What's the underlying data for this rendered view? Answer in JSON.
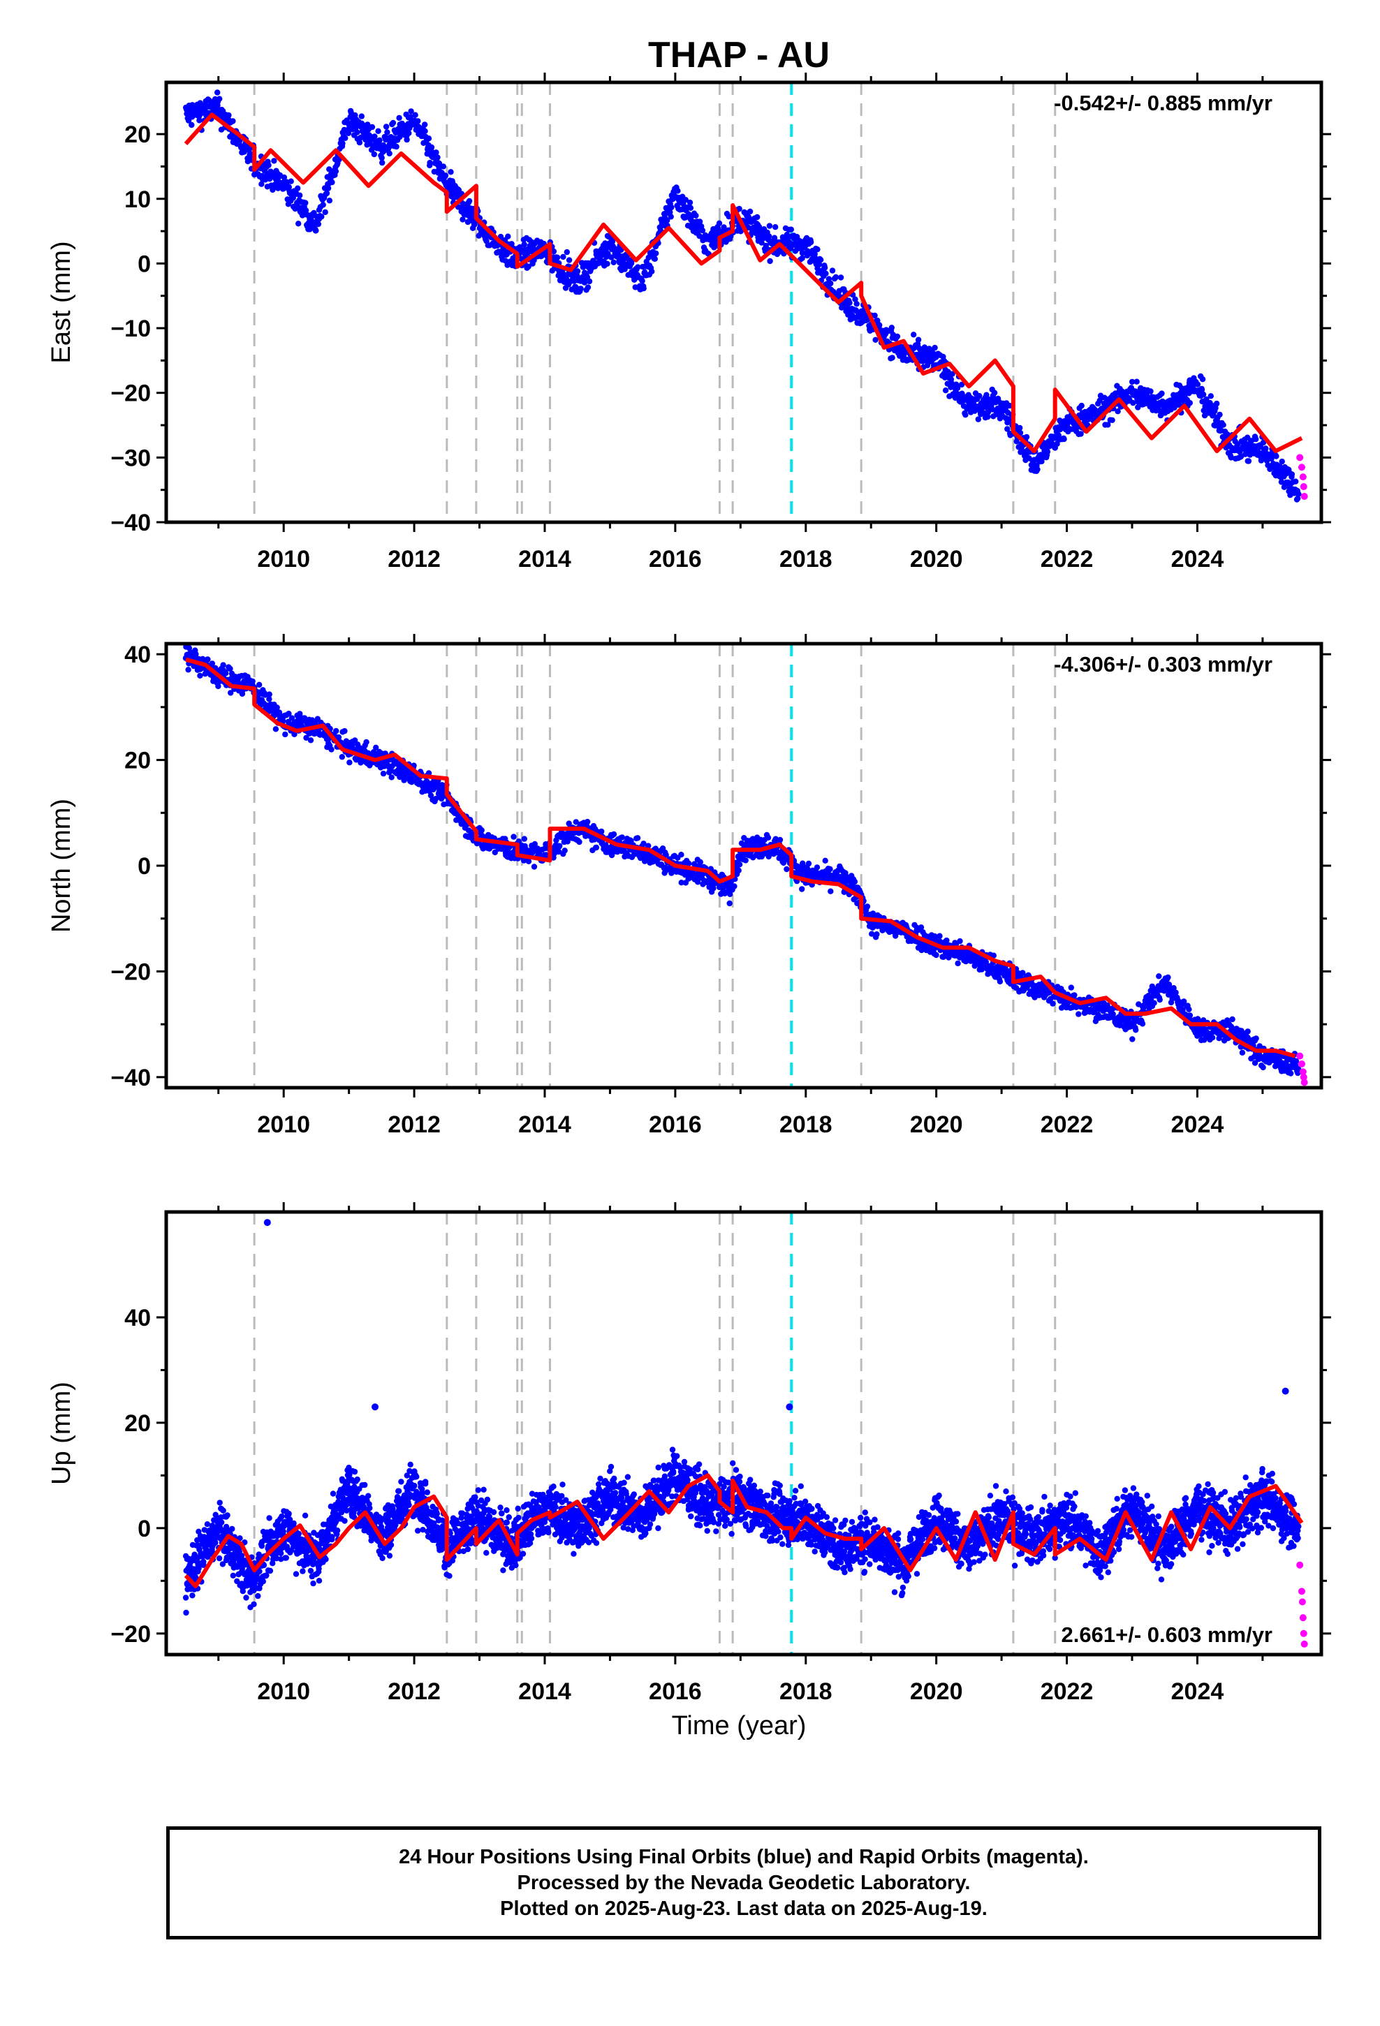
{
  "title": "THAP - AU",
  "xlabel": "Time (year)",
  "footer": [
    "24 Hour Positions Using Final Orbits (blue) and Rapid Orbits (magenta).",
    "Processed by the Nevada Geodetic Laboratory.",
    "Plotted on 2025-Aug-23. Last data on 2025-Aug-19."
  ],
  "colors": {
    "final_orbits": "#0000ff",
    "rapid_orbits": "#ff00ff",
    "model": "#ff0000",
    "events": "#bbbbbb",
    "antenna_change": "#00e5ee"
  },
  "chart_data": [
    {
      "type": "scatter",
      "component": "East",
      "ylabel": "East (mm)",
      "rate_label": "-0.542+/- 0.885 mm/yr",
      "xlim": [
        2008.2,
        2025.9
      ],
      "ylim": [
        -40,
        28
      ],
      "xticks": [
        2010,
        2012,
        2014,
        2016,
        2018,
        2020,
        2022,
        2024
      ],
      "yticks": [
        -40,
        -30,
        -20,
        -10,
        0,
        10,
        20
      ],
      "event_lines": [
        2009.55,
        2012.5,
        2012.95,
        2013.58,
        2013.65,
        2014.08,
        2016.68,
        2016.88,
        2018.85,
        2021.18,
        2021.82
      ],
      "antenna_change_line": 2017.78,
      "rapid_orbits": {
        "x": [
          2025.57,
          2025.6,
          2025.62,
          2025.63,
          2025.64
        ],
        "y": [
          -30,
          -31.5,
          -33,
          -34.5,
          -36
        ]
      },
      "final_orbits_envelope": {
        "x": [
          2008.5,
          2009.0,
          2009.5,
          2010.0,
          2010.5,
          2011.0,
          2011.5,
          2012.0,
          2012.5,
          2013.0,
          2013.5,
          2014.0,
          2014.5,
          2015.0,
          2015.5,
          2016.0,
          2016.5,
          2017.0,
          2017.5,
          2018.0,
          2018.5,
          2019.0,
          2019.5,
          2020.0,
          2020.5,
          2021.0,
          2021.5,
          2022.0,
          2022.5,
          2023.0,
          2023.5,
          2024.0,
          2024.5,
          2025.0,
          2025.55
        ],
        "y": [
          23,
          24,
          16,
          12,
          6,
          22,
          18,
          22,
          12,
          6,
          1,
          2,
          -3,
          3,
          -3,
          11,
          3,
          7,
          3,
          3,
          -5,
          -9,
          -14,
          -15,
          -22,
          -22,
          -31,
          -25,
          -23,
          -20,
          -22,
          -19,
          -28,
          -29,
          -35
        ]
      },
      "model": {
        "x": [
          2008.5,
          2008.9,
          2009.3,
          2009.55,
          2009.55,
          2009.8,
          2010.3,
          2010.8,
          2011.3,
          2011.8,
          2012.3,
          2012.5,
          2012.5,
          2012.95,
          2012.95,
          2013.3,
          2013.58,
          2013.58,
          2014.08,
          2014.08,
          2014.4,
          2014.9,
          2015.4,
          2015.9,
          2016.4,
          2016.68,
          2016.68,
          2016.88,
          2016.88,
          2017.3,
          2017.6,
          2018.0,
          2018.5,
          2018.85,
          2018.85,
          2019.2,
          2019.5,
          2019.8,
          2020.2,
          2020.5,
          2020.9,
          2021.18,
          2021.18,
          2021.5,
          2021.82,
          2021.82,
          2022.3,
          2022.8,
          2023.3,
          2023.8,
          2024.3,
          2024.8,
          2025.2,
          2025.6
        ],
        "y": [
          18.5,
          23,
          20,
          18,
          14.5,
          17.5,
          12.5,
          17.5,
          12,
          17,
          12.5,
          11,
          8,
          12,
          7,
          3.5,
          1.5,
          -0.5,
          3,
          0,
          -1,
          6,
          0.5,
          5.5,
          0,
          2,
          4,
          5,
          9,
          0.5,
          3,
          -1,
          -6,
          -3,
          -5,
          -13,
          -12,
          -17,
          -15.5,
          -19,
          -15,
          -19,
          -26,
          -29,
          -24,
          -19.5,
          -26,
          -21,
          -27,
          -22,
          -29,
          -24,
          -29,
          -27
        ]
      }
    },
    {
      "type": "scatter",
      "component": "North",
      "ylabel": "North (mm)",
      "rate_label": "-4.306+/- 0.303 mm/yr",
      "xlim": [
        2008.2,
        2025.9
      ],
      "ylim": [
        -42,
        42
      ],
      "xticks": [
        2010,
        2012,
        2014,
        2016,
        2018,
        2020,
        2022,
        2024
      ],
      "yticks": [
        -40,
        -20,
        0,
        20,
        40
      ],
      "event_lines": [
        2009.55,
        2012.5,
        2012.95,
        2013.58,
        2013.65,
        2014.08,
        2016.68,
        2016.88,
        2018.85,
        2021.18,
        2021.82
      ],
      "antenna_change_line": 2017.78,
      "rapid_orbits": {
        "x": [
          2025.57,
          2025.6,
          2025.62,
          2025.63,
          2025.64
        ],
        "y": [
          -36,
          -37.5,
          -39,
          -40,
          -41
        ]
      },
      "final_orbits_envelope": {
        "x": [
          2008.5,
          2009.0,
          2009.5,
          2010.0,
          2010.5,
          2011.0,
          2011.5,
          2012.0,
          2012.5,
          2013.0,
          2013.5,
          2014.0,
          2014.5,
          2015.0,
          2015.5,
          2016.0,
          2016.5,
          2016.85,
          2017.0,
          2017.5,
          2018.0,
          2018.5,
          2018.85,
          2019.0,
          2019.5,
          2020.0,
          2020.5,
          2021.0,
          2021.5,
          2022.0,
          2022.5,
          2023.0,
          2023.5,
          2024.0,
          2024.5,
          2025.0,
          2025.55
        ],
        "y": [
          40,
          36,
          34,
          27,
          26,
          22,
          20,
          17,
          13,
          5,
          3,
          2,
          7,
          4,
          3,
          0,
          -2,
          -5,
          3,
          4,
          -2,
          -2,
          -6,
          -11,
          -12,
          -15,
          -17,
          -20,
          -23,
          -25,
          -27,
          -30,
          -22,
          -31,
          -31,
          -36,
          -38
        ]
      },
      "model": {
        "x": [
          2008.5,
          2008.8,
          2009.2,
          2009.55,
          2009.55,
          2009.9,
          2010.2,
          2010.6,
          2010.9,
          2011.4,
          2011.7,
          2012.1,
          2012.5,
          2012.5,
          2012.95,
          2012.95,
          2013.58,
          2013.58,
          2014.08,
          2014.08,
          2014.6,
          2015.1,
          2015.6,
          2016.0,
          2016.5,
          2016.68,
          2016.68,
          2016.88,
          2016.88,
          2017.3,
          2017.6,
          2017.78,
          2017.78,
          2018.1,
          2018.5,
          2018.85,
          2018.85,
          2019.3,
          2019.7,
          2020.1,
          2020.5,
          2020.9,
          2021.18,
          2021.18,
          2021.6,
          2021.82,
          2021.82,
          2022.2,
          2022.6,
          2022.9,
          2023.2,
          2023.6,
          2023.9,
          2024.3,
          2024.6,
          2024.9,
          2025.2,
          2025.5
        ],
        "y": [
          39,
          38,
          34,
          33.5,
          30.5,
          27,
          25.5,
          26.5,
          22,
          20,
          21,
          17,
          16.5,
          13.5,
          6.5,
          5,
          4,
          2,
          1,
          7,
          7,
          4,
          3,
          0,
          -1,
          -3,
          -3,
          -2,
          3,
          3,
          4,
          2,
          -2,
          -3,
          -3.5,
          -6,
          -10,
          -10.5,
          -13.5,
          -15.5,
          -15.5,
          -18,
          -19,
          -22,
          -21,
          -24,
          -24,
          -26,
          -25,
          -28,
          -28,
          -27,
          -30,
          -30,
          -33,
          -35,
          -35,
          -36
        ]
      }
    },
    {
      "type": "scatter",
      "component": "Up",
      "ylabel": "Up (mm)",
      "rate_label": "2.661+/- 0.603 mm/yr",
      "xlim": [
        2008.2,
        2025.9
      ],
      "ylim": [
        -24,
        60
      ],
      "xticks": [
        2010,
        2012,
        2014,
        2016,
        2018,
        2020,
        2022,
        2024
      ],
      "yticks": [
        -20,
        0,
        20,
        40
      ],
      "event_lines": [
        2009.55,
        2012.5,
        2012.95,
        2013.58,
        2013.65,
        2014.08,
        2016.68,
        2016.88,
        2018.85,
        2021.18,
        2021.82
      ],
      "antenna_change_line": 2017.78,
      "rapid_orbits": {
        "x": [
          2025.57,
          2025.6,
          2025.61,
          2025.62,
          2025.63,
          2025.64
        ],
        "y": [
          -7,
          -12,
          -14,
          -17,
          -20,
          -22
        ]
      },
      "outliers": {
        "x": [
          2009.75,
          2017.75,
          2025.35,
          2011.4
        ],
        "y": [
          58,
          23,
          26,
          23
        ]
      },
      "final_orbits_envelope": {
        "x": [
          2008.5,
          2009.0,
          2009.5,
          2010.0,
          2010.5,
          2011.0,
          2011.5,
          2012.0,
          2012.5,
          2013.0,
          2013.5,
          2014.0,
          2014.5,
          2015.0,
          2015.5,
          2016.0,
          2016.5,
          2017.0,
          2017.5,
          2018.0,
          2018.5,
          2019.0,
          2019.5,
          2020.0,
          2020.5,
          2021.0,
          2021.5,
          2022.0,
          2022.5,
          2023.0,
          2023.5,
          2024.0,
          2024.5,
          2025.0,
          2025.55
        ],
        "y": [
          -10,
          0,
          -10,
          0,
          -6,
          8,
          -2,
          8,
          -4,
          2,
          -3,
          4,
          0,
          6,
          2,
          10,
          4,
          6,
          2,
          2,
          -4,
          -2,
          -7,
          2,
          -4,
          2,
          -2,
          2,
          -5,
          4,
          -4,
          4,
          0,
          6,
          0
        ]
      },
      "model": {
        "x": [
          2008.5,
          2008.65,
          2008.9,
          2009.15,
          2009.35,
          2009.55,
          2009.75,
          2010.0,
          2010.25,
          2010.55,
          2010.8,
          2011.0,
          2011.25,
          2011.55,
          2011.8,
          2012.0,
          2012.3,
          2012.5,
          2012.5,
          2012.65,
          2012.95,
          2012.95,
          2013.3,
          2013.58,
          2013.58,
          2013.8,
          2014.08,
          2014.08,
          2014.5,
          2014.9,
          2015.3,
          2015.6,
          2015.9,
          2016.2,
          2016.5,
          2016.68,
          2016.68,
          2016.88,
          2016.88,
          2017.1,
          2017.4,
          2017.65,
          2017.78,
          2017.78,
          2018.0,
          2018.3,
          2018.6,
          2018.85,
          2018.85,
          2019.2,
          2019.6,
          2020.0,
          2020.3,
          2020.6,
          2020.9,
          2021.18,
          2021.18,
          2021.5,
          2021.82,
          2021.82,
          2022.2,
          2022.6,
          2022.9,
          2023.3,
          2023.6,
          2023.9,
          2024.2,
          2024.5,
          2024.8,
          2025.2,
          2025.6
        ],
        "y": [
          -9,
          -11,
          -6,
          -1.5,
          -3,
          -8,
          -5,
          -2,
          0.5,
          -5.5,
          -3,
          0,
          3,
          -3,
          0,
          4,
          6,
          2,
          -6,
          -4,
          0,
          -3,
          1.5,
          -5,
          -1,
          1.5,
          3,
          2,
          5,
          -2,
          3,
          7,
          3,
          8,
          10,
          7,
          5,
          3,
          9,
          4,
          3,
          0,
          0,
          -2,
          2,
          -1,
          -2,
          -2,
          -4,
          0,
          -8,
          0,
          -6,
          3,
          -6,
          3,
          -3,
          -5,
          0,
          -5,
          -2,
          -6,
          3,
          -6,
          3,
          -4,
          4,
          0,
          6,
          8,
          1
        ]
      }
    }
  ]
}
